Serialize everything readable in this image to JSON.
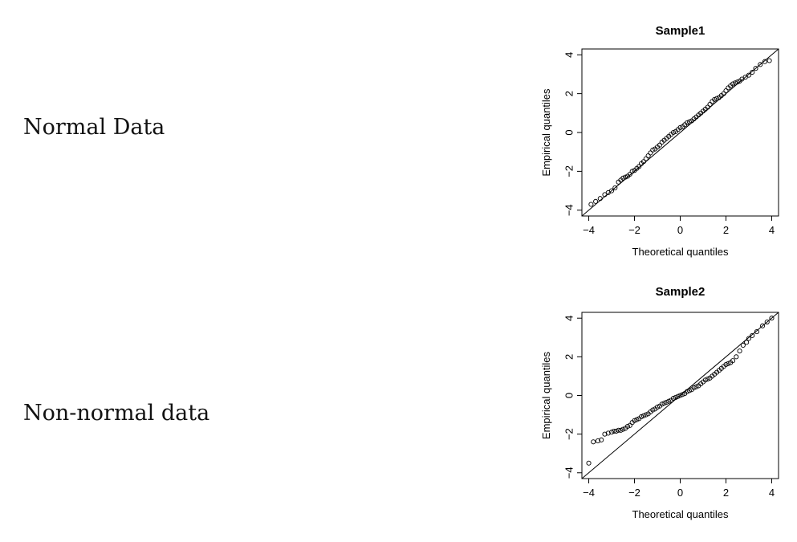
{
  "labels": {
    "normal": "Normal Data",
    "nonnormal": "Non-normal data"
  },
  "chart_data": [
    {
      "type": "scatter",
      "title": "Sample1",
      "xlabel": "Theoretical quantiles",
      "ylabel": "Empirical quantiles",
      "xlim": [
        -4.3,
        4.3
      ],
      "ylim": [
        -4.3,
        4.3
      ],
      "xticks": [
        -4,
        -2,
        0,
        2,
        4
      ],
      "yticks": [
        -4,
        -2,
        0,
        2,
        4
      ],
      "reference_line": {
        "intercept": 0,
        "slope": 1
      },
      "marker": "open-circle",
      "points": {
        "x": [
          -3.9,
          -3.7,
          -3.5,
          -3.3,
          -3.15,
          -3.0,
          -2.85,
          -2.7,
          -2.6,
          -2.5,
          -2.4,
          -2.3,
          -2.2,
          -2.1,
          -2.0,
          -1.9,
          -1.8,
          -1.7,
          -1.6,
          -1.5,
          -1.4,
          -1.3,
          -1.2,
          -1.1,
          -1.0,
          -0.9,
          -0.8,
          -0.7,
          -0.6,
          -0.5,
          -0.4,
          -0.3,
          -0.2,
          -0.1,
          0.0,
          0.1,
          0.2,
          0.3,
          0.4,
          0.5,
          0.6,
          0.7,
          0.8,
          0.9,
          1.0,
          1.1,
          1.2,
          1.3,
          1.4,
          1.5,
          1.6,
          1.7,
          1.8,
          1.9,
          2.0,
          2.1,
          2.2,
          2.3,
          2.4,
          2.5,
          2.6,
          2.7,
          2.85,
          3.0,
          3.15,
          3.3,
          3.5,
          3.7,
          3.9
        ],
        "y": [
          -3.7,
          -3.55,
          -3.4,
          -3.2,
          -3.1,
          -3.0,
          -2.85,
          -2.55,
          -2.45,
          -2.35,
          -2.3,
          -2.25,
          -2.15,
          -2.0,
          -1.95,
          -1.85,
          -1.75,
          -1.6,
          -1.5,
          -1.35,
          -1.2,
          -1.05,
          -0.9,
          -0.85,
          -0.75,
          -0.65,
          -0.5,
          -0.4,
          -0.3,
          -0.2,
          -0.1,
          0.0,
          0.05,
          0.15,
          0.25,
          0.3,
          0.4,
          0.5,
          0.55,
          0.6,
          0.7,
          0.8,
          0.9,
          1.0,
          1.1,
          1.2,
          1.3,
          1.45,
          1.6,
          1.7,
          1.75,
          1.8,
          1.9,
          2.0,
          2.15,
          2.3,
          2.4,
          2.5,
          2.55,
          2.6,
          2.65,
          2.75,
          2.85,
          2.95,
          3.1,
          3.3,
          3.5,
          3.65,
          3.7
        ]
      }
    },
    {
      "type": "scatter",
      "title": "Sample2",
      "xlabel": "Theoretical quantiles",
      "ylabel": "Empirical quantiles",
      "xlim": [
        -4.3,
        4.3
      ],
      "ylim": [
        -4.3,
        4.3
      ],
      "xticks": [
        -4,
        -2,
        0,
        2,
        4
      ],
      "yticks": [
        -4,
        -2,
        0,
        2,
        4
      ],
      "reference_line": {
        "intercept": 0,
        "slope": 1
      },
      "marker": "open-circle",
      "points": {
        "x": [
          -4.0,
          -3.8,
          -3.6,
          -3.45,
          -3.3,
          -3.15,
          -3.0,
          -2.9,
          -2.8,
          -2.7,
          -2.6,
          -2.5,
          -2.4,
          -2.3,
          -2.2,
          -2.1,
          -2.0,
          -1.9,
          -1.8,
          -1.7,
          -1.6,
          -1.5,
          -1.4,
          -1.3,
          -1.2,
          -1.1,
          -1.0,
          -0.9,
          -0.8,
          -0.7,
          -0.6,
          -0.5,
          -0.4,
          -0.3,
          -0.2,
          -0.1,
          0.0,
          0.1,
          0.2,
          0.3,
          0.4,
          0.5,
          0.6,
          0.7,
          0.8,
          0.9,
          1.0,
          1.1,
          1.2,
          1.3,
          1.4,
          1.5,
          1.6,
          1.7,
          1.8,
          1.9,
          2.0,
          2.1,
          2.2,
          2.3,
          2.45,
          2.6,
          2.75,
          2.9,
          3.0,
          3.15,
          3.35,
          3.6,
          3.8,
          4.0
        ],
        "y": [
          -3.5,
          -2.4,
          -2.35,
          -2.3,
          -2.0,
          -1.95,
          -1.9,
          -1.85,
          -1.85,
          -1.8,
          -1.8,
          -1.75,
          -1.7,
          -1.6,
          -1.55,
          -1.4,
          -1.3,
          -1.25,
          -1.2,
          -1.1,
          -1.05,
          -1.0,
          -0.95,
          -0.85,
          -0.75,
          -0.7,
          -0.6,
          -0.55,
          -0.45,
          -0.4,
          -0.35,
          -0.3,
          -0.25,
          -0.15,
          -0.1,
          -0.05,
          0.0,
          0.05,
          0.1,
          0.2,
          0.25,
          0.3,
          0.4,
          0.45,
          0.5,
          0.6,
          0.7,
          0.8,
          0.85,
          0.9,
          1.0,
          1.1,
          1.2,
          1.3,
          1.4,
          1.5,
          1.6,
          1.65,
          1.7,
          1.8,
          2.0,
          2.3,
          2.6,
          2.75,
          2.95,
          3.1,
          3.3,
          3.6,
          3.8,
          4.0
        ]
      }
    }
  ]
}
